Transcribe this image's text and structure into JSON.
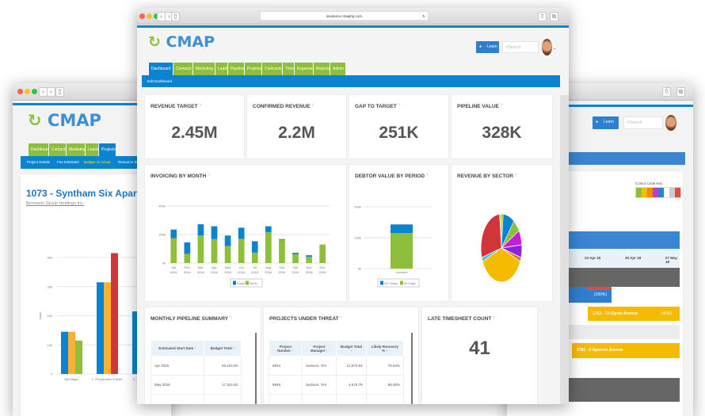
{
  "left_window": {
    "logo": "CMAP",
    "tabs": [
      "Dashboard",
      "Contacts",
      "Marketing",
      "Leads",
      "Projects"
    ],
    "subnav": [
      "Project Details",
      "Fee Estimator",
      "Budget vs Actual",
      "Resource Sc"
    ],
    "project_title": "1073 - Syntham Six Apartment Blo",
    "client_link": "Bernstein Group Holdings Inc.",
    "chart_data": {
      "type": "bar",
      "ylabel": "Value",
      "ylim": [
        0,
        40000
      ],
      "yticks": [
        "0",
        "10k",
        "20k",
        "30k",
        "40k"
      ],
      "categories": [
        "Bid Stage",
        "1- Preparation & Brief",
        "2 - Con Desig"
      ],
      "series": [
        {
          "color": "#0a84d0",
          "values": [
            14500,
            31500,
            21500
          ]
        },
        {
          "color": "#f8b133",
          "values": [
            14500,
            31500,
            21500
          ]
        },
        {
          "color": "#d3343a",
          "values": [
            null,
            41500,
            null
          ]
        },
        {
          "color": "#8dbf3a",
          "values": [
            11500,
            null,
            null
          ]
        }
      ]
    }
  },
  "main_window": {
    "url": "secdemo.cmaphq.com",
    "logo": "CMAP",
    "learn_label": "Learn",
    "search_placeholder": "Search",
    "tabs": [
      "Dashboard",
      "Contacts",
      "Marketing",
      "Leads",
      "Pipeline",
      "Projects",
      "Contracts",
      "Time",
      "Expenses",
      "Reports",
      "Admin"
    ],
    "subnav": [
      "Edit Dashboard"
    ],
    "kpis": [
      {
        "title": "REVENUE TARGET",
        "value": "2.45M"
      },
      {
        "title": "CONFIRMED REVENUE",
        "value": "2.2M"
      },
      {
        "title": "GAP TO TARGET",
        "value": "251K"
      },
      {
        "title": "PIPELINE VALUE",
        "value": "328K"
      }
    ],
    "invoicing": {
      "title": "INVOICING BY MONTH",
      "chart_data": {
        "type": "bar",
        "stacked": true,
        "ylim": [
          0,
          400000
        ],
        "yticks": [
          "0k",
          "200k",
          "400k"
        ],
        "categories": [
          [
            "Jan",
            "2016"
          ],
          [
            "Feb",
            "2016"
          ],
          [
            "Mar",
            "2016"
          ],
          [
            "Apr",
            "2016"
          ],
          [
            "May",
            "2016"
          ],
          [
            "Jun",
            "2016"
          ],
          [
            "Jul",
            "2016"
          ],
          [
            "Aug",
            "2016"
          ],
          [
            "Sep",
            "2016"
          ],
          [
            "Oct",
            "2016"
          ],
          [
            "Nov",
            "2016"
          ],
          [
            "Dec",
            "2016"
          ]
        ],
        "series": [
          {
            "name": "North",
            "color": "#8dbf3a",
            "values": [
              175000,
              65000,
              193000,
              168000,
              120000,
              170000,
              73000,
              217000,
              163000,
              62000,
              45000,
              130000
            ]
          },
          {
            "name": "South",
            "color": "#0a84d0",
            "values": [
              60000,
              80000,
              79000,
              90000,
              73000,
              78000,
              80000,
              41000,
              5000,
              10000,
              10000,
              0
            ]
          }
        ],
        "legend": [
          "South",
          "North"
        ],
        "legend_position": "bottom"
      }
    },
    "debtor": {
      "title": "DEBTOR VALUE BY PERIOD",
      "chart_data": {
        "type": "bar",
        "stacked": true,
        "ylim": [
          0,
          200000
        ],
        "yticks": [
          "0k",
          "100k",
          "200k"
        ],
        "categories": [
          "Invoiced"
        ],
        "series": [
          {
            "name": "90 Days",
            "color": "#8dbf3a",
            "values": [
              115000
            ]
          },
          {
            "name": "90+ Days",
            "color": "#0a84d0",
            "values": [
              28000
            ]
          }
        ],
        "legend": [
          "90+ Days",
          "90 Days"
        ],
        "legend_position": "bottom"
      }
    },
    "sector": {
      "title": "REVENUE BY SECTOR",
      "chart_data": {
        "type": "pie",
        "slices": [
          {
            "color": "#8dbf3a",
            "value": 1.5
          },
          {
            "color": "#0a84d0",
            "value": 9
          },
          {
            "color": "#8dbf3a",
            "value": 6
          },
          {
            "color": "#c21dd8",
            "value": 7
          },
          {
            "color": "#8a22e0",
            "value": 6
          },
          {
            "color": "#e07a10",
            "value": 2
          },
          {
            "color": "#f5bb00",
            "value": 37
          },
          {
            "color": "#3ec6d8",
            "value": 2
          },
          {
            "color": "#d3343a",
            "value": 28
          },
          {
            "color": "#b8e07a",
            "value": 1.5
          }
        ]
      }
    },
    "pipeline_summary": {
      "title": "MONTHLY PIPELINE SUMMARY",
      "columns": [
        "Estimated Start Date",
        "Budget Total"
      ],
      "rows": [
        [
          "Apr 2016",
          "26,104.00"
        ],
        [
          "May 2016",
          "17,324.00"
        ]
      ]
    },
    "projects_threat": {
      "title": "PROJECTS UNDER THREAT",
      "columns": [
        "Project Number",
        "Project Manager",
        "Budget Total",
        "Likely Recovery %"
      ],
      "rows": [
        [
          "8834",
          "Jackson, Tim",
          "12,972.84",
          "75.54%"
        ],
        [
          "8948",
          "Jackson, Tim",
          "4,675.78",
          "86.00%"
        ]
      ]
    },
    "late_timesheet": {
      "title": "LATE TIMESHEET COUNT",
      "value": "41"
    }
  },
  "right_window": {
    "learn_label": "Learn",
    "search_placeholder": "Search",
    "colour_key_label": "Colour Code Key",
    "colour_key": [
      "#8dbf3a",
      "#f5bb00",
      "#f08a00",
      "#c23ac8",
      "#2e7fd0",
      "#ffffff",
      "#cccccc",
      "#e84a3a"
    ],
    "dates": [
      "23 Apr 18",
      "30 Apr 18",
      "07 May 18"
    ],
    "bars": [
      {
        "label": "",
        "pct": "(100%)",
        "color": "#2e7fd0"
      },
      {
        "label": "1762 - 72 Glynis Avenue",
        "pct": "(40%)",
        "color": "#f5bb00"
      },
      {
        "label": "1781 - 5 Spencer Avenue",
        "pct": "",
        "color": "#f5bb00"
      }
    ]
  }
}
